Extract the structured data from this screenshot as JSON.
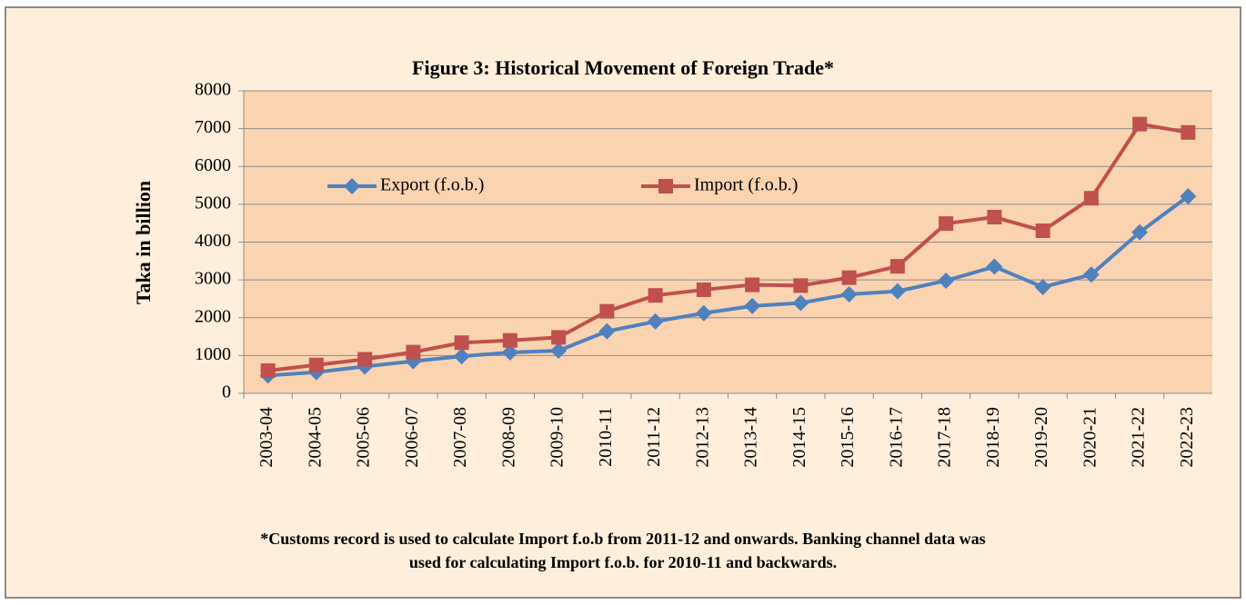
{
  "chart_data": {
    "type": "line",
    "title": "Figure 3: Historical Movement of Foreign Trade*",
    "y_label": "Taka in billion",
    "footnote": [
      "*Customs record is used to calculate Import f.o.b from 2011-12 and onwards. Banking channel data was",
      "used for calculating Import f.o.b. for 2010-11 and backwards."
    ],
    "categories": [
      "2003-04",
      "2004-05",
      "2005-06",
      "2006-07",
      "2007-08",
      "2008-09",
      "2009-10",
      "2010-11",
      "2011-12",
      "2012-13",
      "2013-14",
      "2014-15",
      "2015-16",
      "2016-17",
      "2017-18",
      "2018-19",
      "2019-20",
      "2020-21",
      "2021-22",
      "2022-23"
    ],
    "series": [
      {
        "name": "Export (f.o.b.)",
        "color": "#4f81bd",
        "marker": "diamond",
        "values": [
          470,
          560,
          710,
          850,
          980,
          1080,
          1130,
          1640,
          1900,
          2120,
          2310,
          2390,
          2620,
          2700,
          2980,
          3350,
          2810,
          3140,
          4260,
          5210
        ]
      },
      {
        "name": "Import (f.o.b.)",
        "color": "#c0504d",
        "marker": "square",
        "values": [
          600,
          750,
          900,
          1090,
          1340,
          1400,
          1480,
          2170,
          2590,
          2740,
          2870,
          2850,
          3060,
          3360,
          4490,
          4660,
          4300,
          5160,
          7120,
          6900
        ]
      }
    ],
    "ylim": [
      0,
      8000
    ],
    "yticks": [
      0,
      1000,
      2000,
      3000,
      4000,
      5000,
      6000,
      7000,
      8000
    ],
    "grid": true
  }
}
